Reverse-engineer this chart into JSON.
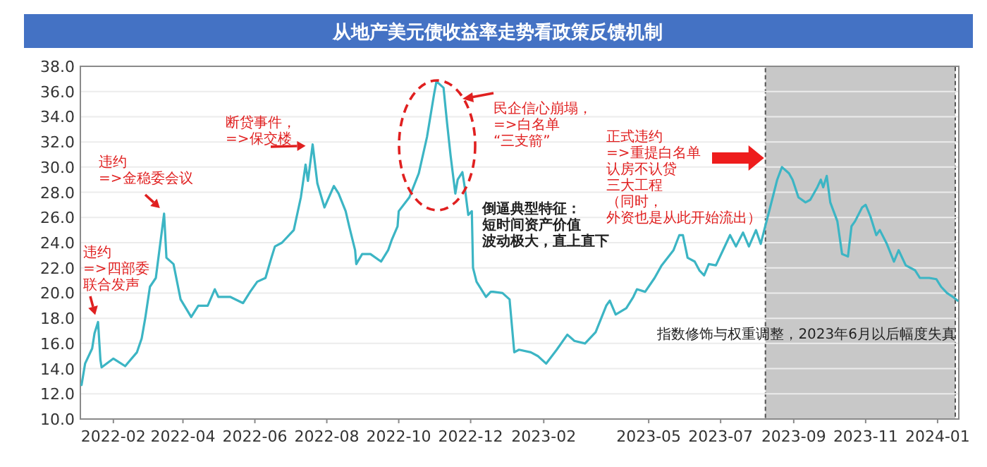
{
  "chart_data": {
    "type": "line",
    "title": "从地产美元债收益率走势看政策反馈机制",
    "x": [
      "2022-01-05",
      "2022-01-08",
      "2022-01-14",
      "2022-01-16",
      "2022-01-19",
      "2022-01-21",
      "2022-01-22",
      "2022-02-01",
      "2022-02-11",
      "2022-02-21",
      "2022-02-25",
      "2022-02-28",
      "2022-03-04",
      "2022-03-09",
      "2022-03-16",
      "2022-03-18",
      "2022-03-24",
      "2022-03-30",
      "2022-04-08",
      "2022-04-14",
      "2022-04-22",
      "2022-04-28",
      "2022-05-01",
      "2022-05-11",
      "2022-05-22",
      "2022-05-28",
      "2022-06-03",
      "2022-06-10",
      "2022-06-15",
      "2022-06-18",
      "2022-06-24",
      "2022-07-04",
      "2022-07-10",
      "2022-07-14",
      "2022-07-16",
      "2022-07-20",
      "2022-07-24",
      "2022-07-30",
      "2022-08-07",
      "2022-08-11",
      "2022-08-17",
      "2022-08-20",
      "2022-08-25",
      "2022-08-26",
      "2022-08-31",
      "2022-09-07",
      "2022-09-16",
      "2022-09-22",
      "2022-09-25",
      "2022-09-30",
      "2022-10-01",
      "2022-10-10",
      "2022-10-18",
      "2022-10-25",
      "2022-10-31",
      "2022-11-02",
      "2022-11-08",
      "2022-11-11",
      "2022-11-14",
      "2022-11-18",
      "2022-11-20",
      "2022-11-24",
      "2022-11-26",
      "2022-11-29",
      "2022-12-02",
      "2022-12-03",
      "2022-12-06",
      "2022-12-14",
      "2022-12-18",
      "2022-12-20",
      "2022-12-28",
      "2023-01-03",
      "2023-01-07",
      "2023-01-11",
      "2023-01-21",
      "2023-01-27",
      "2023-02-03",
      "2023-02-12",
      "2023-02-21",
      "2023-02-27",
      "2023-03-08",
      "2023-03-17",
      "2023-03-26",
      "2023-03-29",
      "2023-04-03",
      "2023-04-12",
      "2023-04-18",
      "2023-04-21",
      "2023-04-28",
      "2023-05-06",
      "2023-05-12",
      "2023-05-22",
      "2023-05-27",
      "2023-05-30",
      "2023-06-03",
      "2023-06-09",
      "2023-06-13",
      "2023-06-17",
      "2023-06-21",
      "2023-06-27",
      "2023-07-03",
      "2023-07-09",
      "2023-07-14",
      "2023-07-20",
      "2023-07-25",
      "2023-07-31",
      "2023-08-04",
      "2023-08-07",
      "2023-08-12",
      "2023-08-18",
      "2023-08-22",
      "2023-08-28",
      "2023-08-31",
      "2023-09-05",
      "2023-09-11",
      "2023-09-15",
      "2023-09-21",
      "2023-09-24",
      "2023-09-26",
      "2023-09-29",
      "2023-10-02",
      "2023-10-08",
      "2023-10-12",
      "2023-10-17",
      "2023-10-20",
      "2023-10-23",
      "2023-10-29",
      "2023-11-01",
      "2023-11-05",
      "2023-11-10",
      "2023-11-13",
      "2023-11-19",
      "2023-11-25",
      "2023-11-29",
      "2023-12-05",
      "2023-12-13",
      "2023-12-17",
      "2023-12-25",
      "2023-12-31",
      "2024-01-04",
      "2024-01-09",
      "2024-01-14",
      "2024-01-18"
    ],
    "values": [
      12.7,
      14.4,
      15.6,
      16.8,
      17.7,
      14.7,
      14.1,
      14.8,
      14.2,
      15.3,
      16.4,
      18.0,
      20.5,
      21.2,
      26.3,
      22.8,
      22.3,
      19.5,
      18.1,
      19.0,
      19.0,
      20.3,
      19.7,
      19.7,
      19.2,
      20.1,
      20.9,
      21.2,
      22.8,
      23.7,
      24.0,
      25.0,
      27.6,
      30.2,
      28.9,
      31.8,
      28.7,
      26.8,
      28.5,
      27.9,
      26.5,
      25.3,
      23.4,
      22.3,
      23.1,
      23.1,
      22.5,
      23.4,
      24.2,
      25.3,
      26.5,
      27.6,
      29.5,
      32.4,
      35.8,
      36.8,
      36.3,
      33.5,
      30.9,
      27.9,
      29.0,
      29.6,
      28.4,
      26.2,
      26.5,
      22.0,
      20.9,
      19.7,
      20.1,
      20.1,
      20.0,
      19.5,
      15.3,
      15.5,
      15.3,
      15.0,
      14.4,
      15.5,
      16.7,
      16.2,
      16.0,
      16.9,
      19.0,
      19.4,
      18.3,
      18.8,
      19.7,
      20.3,
      20.1,
      21.2,
      22.2,
      23.4,
      24.6,
      24.6,
      22.8,
      22.5,
      21.8,
      21.4,
      22.3,
      22.2,
      23.4,
      24.6,
      23.7,
      24.8,
      23.7,
      25.0,
      23.9,
      25.0,
      26.8,
      29.0,
      30.0,
      29.5,
      29.0,
      27.6,
      27.2,
      27.4,
      28.4,
      29.0,
      28.4,
      29.3,
      27.2,
      25.7,
      23.1,
      22.9,
      25.3,
      25.7,
      26.8,
      27.0,
      26.1,
      24.6,
      25.0,
      23.9,
      22.5,
      23.4,
      22.2,
      21.8,
      21.2,
      21.2,
      21.1,
      20.5,
      20.0,
      19.7,
      19.4
    ],
    "color": "#3cb5c4",
    "xlim": [
      "2022-01-04",
      "2024-01-19"
    ],
    "xticks": [
      "2022-02",
      "2022-04",
      "2022-06",
      "2022-08",
      "2022-10",
      "2022-12",
      "2023-02",
      "2023-05",
      "2023-07",
      "2023-09",
      "2023-11",
      "2024-01"
    ],
    "ylim": [
      10,
      38
    ],
    "yticks": [
      {
        "value": 10,
        "label": "10.0"
      },
      {
        "value": 12,
        "label": "12.0"
      },
      {
        "value": 14,
        "label": "14.0"
      },
      {
        "value": 16,
        "label": "16.0"
      },
      {
        "value": 18,
        "label": "18.0"
      },
      {
        "value": 20,
        "label": "20.0"
      },
      {
        "value": 22,
        "label": "22.0"
      },
      {
        "value": 24,
        "label": "24.0"
      },
      {
        "value": 26,
        "label": "26.0"
      },
      {
        "value": 28,
        "label": "28.0"
      },
      {
        "value": 30,
        "label": "30.0"
      },
      {
        "value": 32,
        "label": "32.0"
      },
      {
        "value": 34,
        "label": "34.0"
      },
      {
        "value": 36,
        "label": "36.0"
      },
      {
        "value": 38,
        "label": "38.0"
      }
    ],
    "grid": "y",
    "marker": "none",
    "line_style": "solid",
    "bands": [
      {
        "axis": "x",
        "from": "2023-08-08",
        "to": "2024-01-16",
        "label": "指数修饰与权重调整，2023年6月以后幅度失真",
        "color": "#c8c8c8"
      }
    ],
    "annotations": [
      {
        "text": "违约=>四部委联合发声",
        "x": "2022-01-19",
        "y": 17.7
      },
      {
        "text": "违约=>金稳委会议",
        "x": "2022-03-16",
        "y": 26.3
      },
      {
        "text": "断贷事件，=>保交楼",
        "x": "2022-07-20",
        "y": 31.8
      },
      "民企信心崩塌，=>白名单“三支箭”",
      "倒逼典型特征：短时间资产价值波动极大，直上直下",
      {
        "text": "正式违约=>重提白名单认房不认贷三大工程（同时，外资也是从此开始流出）",
        "x": "2023-08-08",
        "y": 30.2
      }
    ]
  }
}
